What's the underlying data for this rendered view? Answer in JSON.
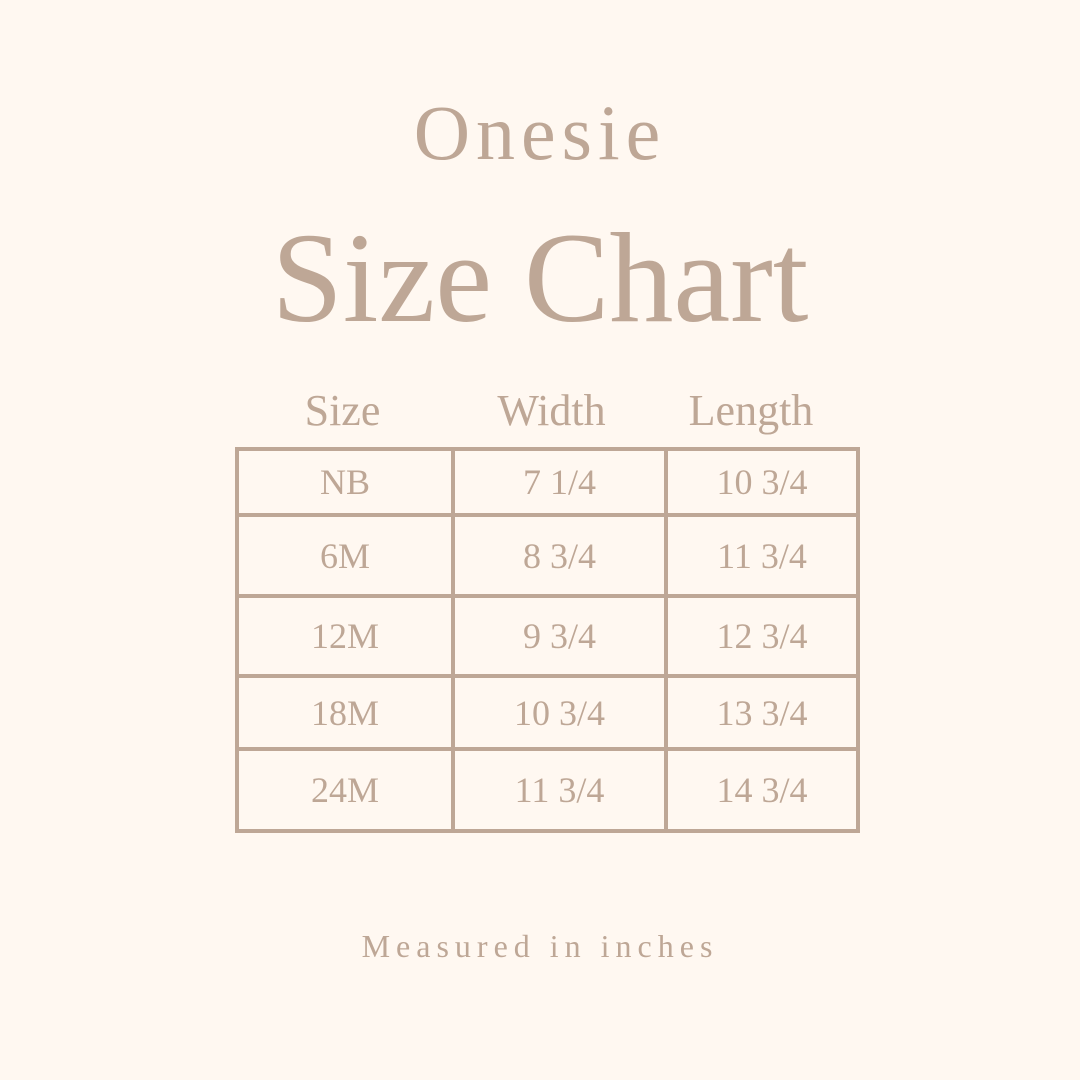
{
  "heading": {
    "subtitle": "Onesie",
    "title": "Size Chart"
  },
  "table": {
    "headers": [
      "Size",
      "Width",
      "Length"
    ],
    "rows": [
      [
        "NB",
        "7 1/4",
        "10 3/4"
      ],
      [
        "6M",
        "8 3/4",
        "11 3/4"
      ],
      [
        "12M",
        "9 3/4",
        "12 3/4"
      ],
      [
        "18M",
        "10 3/4",
        "13 3/4"
      ],
      [
        "24M",
        "11 3/4",
        "14 3/4"
      ]
    ]
  },
  "footer": "Measured in inches",
  "colors": {
    "background": "#fff8f1",
    "text": "#bea796",
    "lines": "#bea796"
  }
}
